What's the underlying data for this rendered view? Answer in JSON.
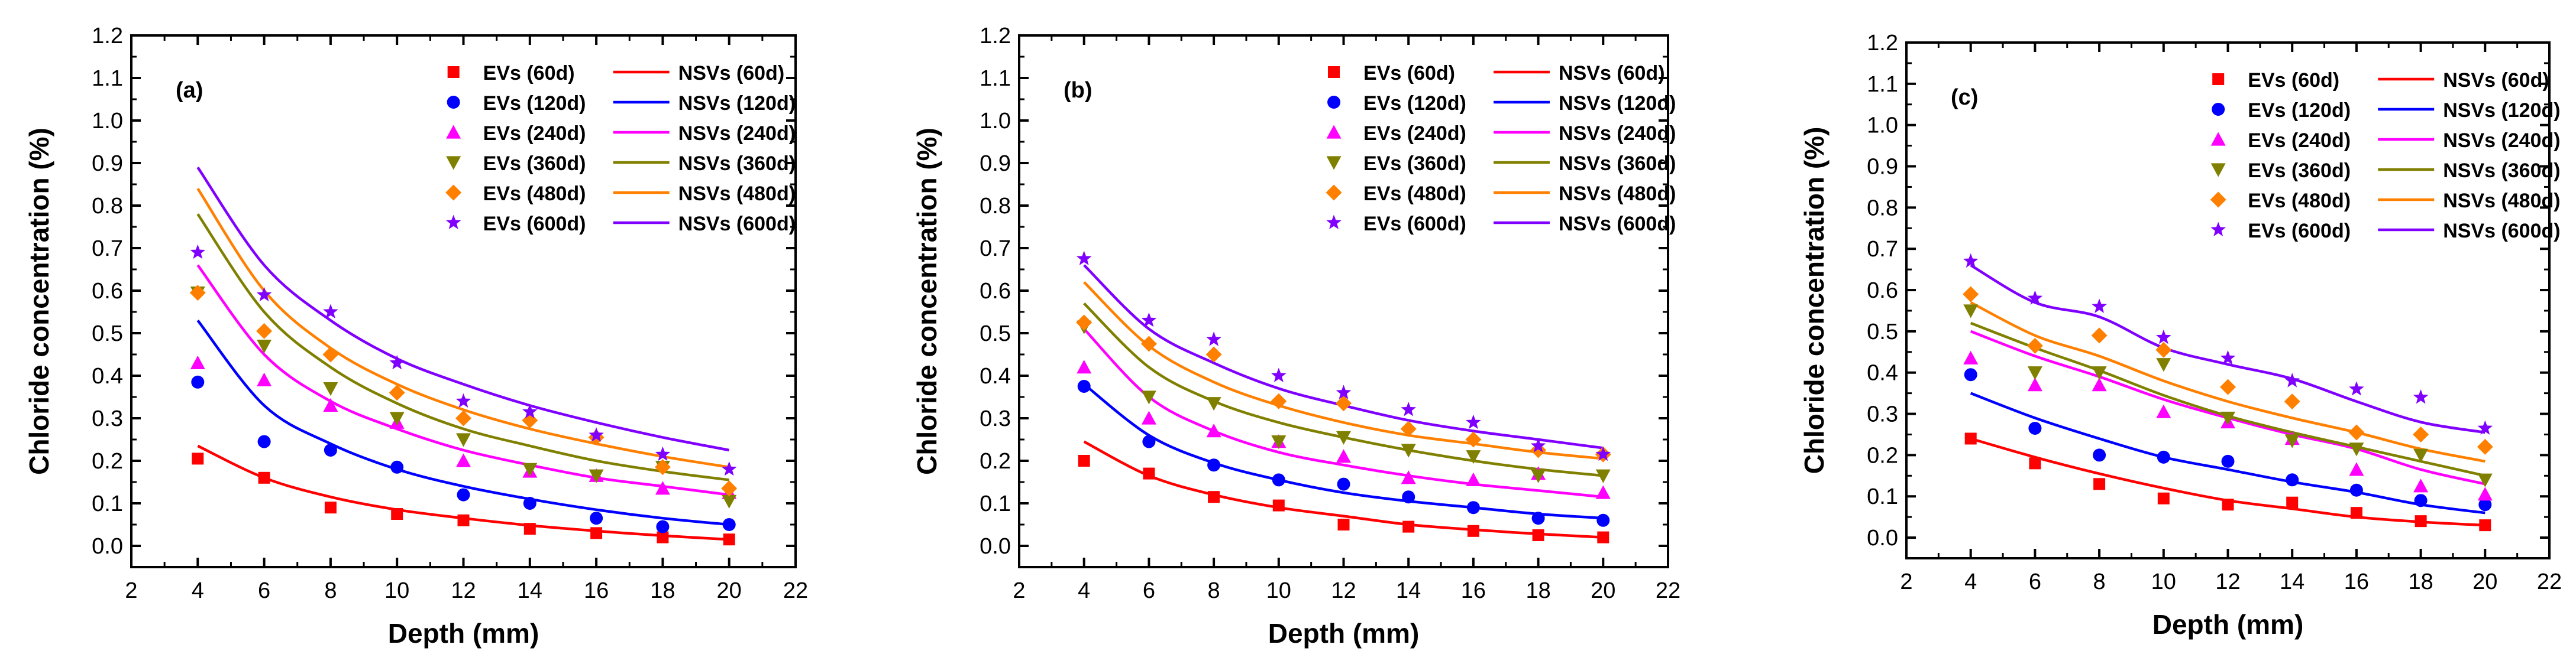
{
  "chart_data": [
    {
      "type": "scatter",
      "panel_label": "(a)",
      "xlabel": "Depth (mm)",
      "ylabel": "Chloride concentration (%)",
      "xlim": [
        2,
        22
      ],
      "ylim": [
        -0.05,
        1.2
      ],
      "xticks": [
        "2",
        "4",
        "6",
        "8",
        "10",
        "12",
        "14",
        "16",
        "18",
        "20",
        "22"
      ],
      "yticks": [
        "0.0",
        "0.1",
        "0.2",
        "0.3",
        "0.4",
        "0.5",
        "0.6",
        "0.7",
        "0.8",
        "0.9",
        "1.0",
        "1.1",
        "1.2"
      ],
      "x": [
        4,
        6,
        8,
        10,
        12,
        14,
        16,
        18,
        20
      ],
      "legend_position": "top-right",
      "series": [
        {
          "scatter_name": "EVs (60d)",
          "line_name": "NSVs (60d)",
          "color": "#ff0000",
          "marker": "square",
          "values": [
            0.205,
            0.16,
            0.09,
            0.075,
            0.06,
            0.04,
            0.03,
            0.02,
            0.015
          ],
          "fit": [
            0.235,
            0.16,
            0.115,
            0.085,
            0.065,
            0.048,
            0.035,
            0.024,
            0.015
          ]
        },
        {
          "scatter_name": "EVs (120d)",
          "line_name": "NSVs (120d)",
          "color": "#0000ff",
          "marker": "circle",
          "values": [
            0.385,
            0.245,
            0.225,
            0.185,
            0.12,
            0.1,
            0.065,
            0.045,
            0.05
          ],
          "fit": [
            0.53,
            0.33,
            0.24,
            0.18,
            0.14,
            0.11,
            0.085,
            0.065,
            0.05
          ]
        },
        {
          "scatter_name": "EVs (240d)",
          "line_name": "NSVs (240d)",
          "color": "#ff00ff",
          "marker": "triangle-up",
          "values": [
            0.43,
            0.39,
            0.33,
            0.29,
            0.2,
            0.175,
            0.165,
            0.135,
            0.125
          ],
          "fit": [
            0.66,
            0.45,
            0.34,
            0.275,
            0.225,
            0.19,
            0.16,
            0.14,
            0.12
          ]
        },
        {
          "scatter_name": "EVs (360d)",
          "line_name": "NSVs (360d)",
          "color": "#808000",
          "marker": "triangle-down",
          "values": [
            0.595,
            0.47,
            0.37,
            0.3,
            0.25,
            0.18,
            0.165,
            0.185,
            0.105
          ],
          "fit": [
            0.78,
            0.55,
            0.42,
            0.335,
            0.275,
            0.235,
            0.2,
            0.175,
            0.155
          ]
        },
        {
          "scatter_name": "EVs (480d)",
          "line_name": "NSVs (480d)",
          "color": "#ff8000",
          "marker": "diamond",
          "values": [
            0.595,
            0.505,
            0.45,
            0.36,
            0.3,
            0.295,
            0.255,
            0.185,
            0.135
          ],
          "fit": [
            0.84,
            0.6,
            0.465,
            0.38,
            0.32,
            0.275,
            0.24,
            0.21,
            0.185
          ]
        },
        {
          "scatter_name": "EVs (600d)",
          "line_name": "NSVs (600d)",
          "color": "#8000ff",
          "marker": "star",
          "values": [
            0.69,
            0.59,
            0.55,
            0.43,
            0.34,
            0.315,
            0.26,
            0.215,
            0.18
          ],
          "fit": [
            0.89,
            0.66,
            0.53,
            0.44,
            0.38,
            0.33,
            0.29,
            0.255,
            0.225
          ]
        }
      ]
    },
    {
      "type": "scatter",
      "panel_label": "(b)",
      "xlabel": "Depth (mm)",
      "ylabel": "Chloride concentration (%)",
      "xlim": [
        2,
        22
      ],
      "ylim": [
        -0.05,
        1.2
      ],
      "xticks": [
        "2",
        "4",
        "6",
        "8",
        "10",
        "12",
        "14",
        "16",
        "18",
        "20",
        "22"
      ],
      "yticks": [
        "0.0",
        "0.1",
        "0.2",
        "0.3",
        "0.4",
        "0.5",
        "0.6",
        "0.7",
        "0.8",
        "0.9",
        "1.0",
        "1.1",
        "1.2"
      ],
      "x": [
        4,
        6,
        8,
        10,
        12,
        14,
        16,
        18,
        20
      ],
      "legend_position": "top-right",
      "series": [
        {
          "scatter_name": "EVs (60d)",
          "line_name": "NSVs (60d)",
          "color": "#ff0000",
          "marker": "square",
          "values": [
            0.2,
            0.17,
            0.115,
            0.095,
            0.05,
            0.045,
            0.035,
            0.025,
            0.02
          ],
          "fit": [
            0.245,
            0.165,
            0.12,
            0.09,
            0.07,
            0.05,
            0.038,
            0.028,
            0.02
          ]
        },
        {
          "scatter_name": "EVs (120d)",
          "line_name": "NSVs (120d)",
          "color": "#0000ff",
          "marker": "circle",
          "values": [
            0.375,
            0.245,
            0.19,
            0.155,
            0.145,
            0.115,
            0.09,
            0.065,
            0.06
          ],
          "fit": [
            0.38,
            0.26,
            0.195,
            0.155,
            0.125,
            0.105,
            0.09,
            0.075,
            0.065
          ]
        },
        {
          "scatter_name": "EVs (240d)",
          "line_name": "NSVs (240d)",
          "color": "#ff00ff",
          "marker": "triangle-up",
          "values": [
            0.42,
            0.3,
            0.27,
            0.245,
            0.21,
            0.16,
            0.155,
            0.17,
            0.125
          ],
          "fit": [
            0.51,
            0.35,
            0.27,
            0.22,
            0.19,
            0.165,
            0.145,
            0.13,
            0.115
          ]
        },
        {
          "scatter_name": "EVs (360d)",
          "line_name": "NSVs (360d)",
          "color": "#808000",
          "marker": "triangle-down",
          "values": [
            0.515,
            0.35,
            0.335,
            0.245,
            0.255,
            0.225,
            0.21,
            0.165,
            0.165
          ],
          "fit": [
            0.57,
            0.42,
            0.34,
            0.29,
            0.255,
            0.225,
            0.2,
            0.18,
            0.165
          ]
        },
        {
          "scatter_name": "EVs (480d)",
          "line_name": "NSVs (480d)",
          "color": "#ff8000",
          "marker": "diamond",
          "values": [
            0.525,
            0.475,
            0.45,
            0.34,
            0.335,
            0.275,
            0.25,
            0.225,
            0.215
          ],
          "fit": [
            0.62,
            0.47,
            0.385,
            0.33,
            0.29,
            0.26,
            0.24,
            0.22,
            0.205
          ]
        },
        {
          "scatter_name": "EVs (600d)",
          "line_name": "NSVs (600d)",
          "color": "#8000ff",
          "marker": "star",
          "values": [
            0.675,
            0.53,
            0.485,
            0.4,
            0.36,
            0.32,
            0.29,
            0.235,
            0.215
          ],
          "fit": [
            0.66,
            0.51,
            0.43,
            0.37,
            0.33,
            0.295,
            0.27,
            0.25,
            0.23
          ]
        }
      ]
    },
    {
      "type": "scatter",
      "panel_label": "(c)",
      "xlabel": "Depth (mm)",
      "ylabel": "Chloride concentration (%)",
      "xlim": [
        2,
        22
      ],
      "ylim": [
        -0.05,
        1.2
      ],
      "xticks": [
        "2",
        "4",
        "6",
        "8",
        "10",
        "12",
        "14",
        "16",
        "18",
        "20",
        "22"
      ],
      "yticks": [
        "0.0",
        "0.1",
        "0.2",
        "0.3",
        "0.4",
        "0.5",
        "0.6",
        "0.7",
        "0.8",
        "0.9",
        "1.0",
        "1.1",
        "1.2"
      ],
      "x": [
        4,
        6,
        8,
        10,
        12,
        14,
        16,
        18,
        20
      ],
      "legend_position": "top-right",
      "series": [
        {
          "scatter_name": "EVs (60d)",
          "line_name": "NSVs (60d)",
          "color": "#ff0000",
          "marker": "square",
          "values": [
            0.24,
            0.18,
            0.13,
            0.095,
            0.08,
            0.085,
            0.06,
            0.04,
            0.03
          ],
          "fit": [
            0.24,
            0.195,
            0.155,
            0.12,
            0.09,
            0.07,
            0.05,
            0.038,
            0.03
          ]
        },
        {
          "scatter_name": "EVs (120d)",
          "line_name": "NSVs (120d)",
          "color": "#0000ff",
          "marker": "circle",
          "values": [
            0.395,
            0.265,
            0.2,
            0.195,
            0.185,
            0.14,
            0.115,
            0.09,
            0.08
          ],
          "fit": [
            0.35,
            0.29,
            0.24,
            0.195,
            0.165,
            0.135,
            0.11,
            0.08,
            0.06
          ]
        },
        {
          "scatter_name": "EVs (240d)",
          "line_name": "NSVs (240d)",
          "color": "#ff00ff",
          "marker": "triangle-up",
          "values": [
            0.435,
            0.37,
            0.37,
            0.305,
            0.28,
            0.24,
            0.165,
            0.125,
            0.105
          ],
          "fit": [
            0.5,
            0.44,
            0.39,
            0.335,
            0.29,
            0.25,
            0.215,
            0.165,
            0.13
          ]
        },
        {
          "scatter_name": "EVs (360d)",
          "line_name": "NSVs (360d)",
          "color": "#808000",
          "marker": "triangle-down",
          "values": [
            0.55,
            0.4,
            0.4,
            0.42,
            0.29,
            0.235,
            0.215,
            0.2,
            0.14
          ],
          "fit": [
            0.52,
            0.46,
            0.405,
            0.345,
            0.295,
            0.255,
            0.22,
            0.185,
            0.15
          ]
        },
        {
          "scatter_name": "EVs (480d)",
          "line_name": "NSVs (480d)",
          "color": "#ff8000",
          "marker": "diamond",
          "values": [
            0.59,
            0.465,
            0.49,
            0.455,
            0.365,
            0.33,
            0.255,
            0.25,
            0.22
          ],
          "fit": [
            0.57,
            0.49,
            0.44,
            0.38,
            0.33,
            0.29,
            0.255,
            0.215,
            0.185
          ]
        },
        {
          "scatter_name": "EVs (600d)",
          "line_name": "NSVs (600d)",
          "color": "#8000ff",
          "marker": "star",
          "values": [
            0.67,
            0.58,
            0.56,
            0.485,
            0.435,
            0.38,
            0.36,
            0.34,
            0.265
          ],
          "fit": [
            0.66,
            0.57,
            0.535,
            0.46,
            0.42,
            0.385,
            0.33,
            0.28,
            0.255
          ]
        }
      ]
    }
  ]
}
